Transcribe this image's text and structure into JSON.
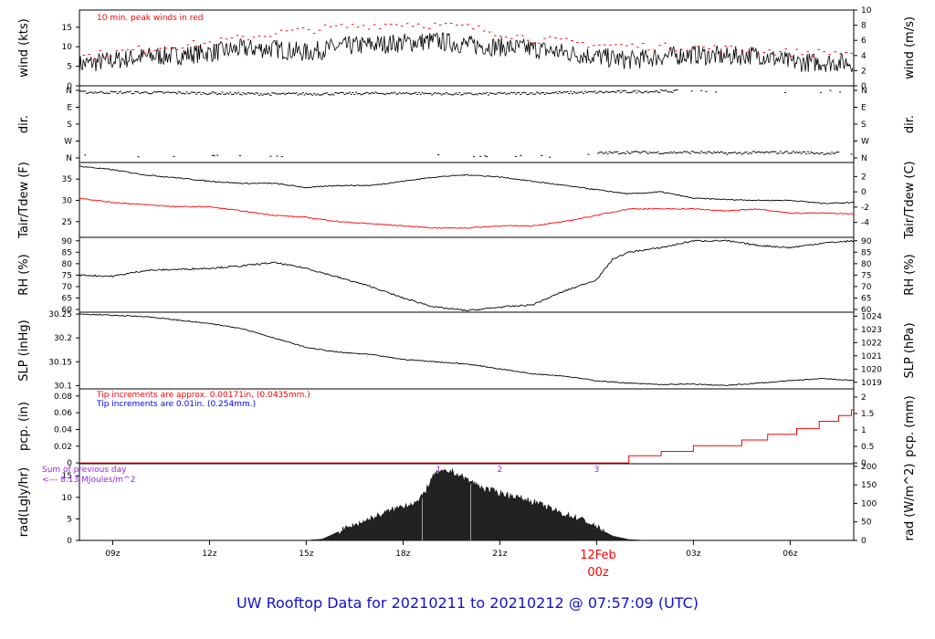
{
  "title": "UW Rooftop Data for 20210211  to  20210212 @ 07:57:09  (UTC)",
  "colors": {
    "text": "#000000",
    "red": "#ff0000",
    "blue": "#0000ff",
    "purple": "#a020f0",
    "title": "#1010d0"
  },
  "x_axis": {
    "ticks": [
      "09z",
      "12z",
      "15z",
      "18z",
      "21z",
      "",
      "03z",
      "06z"
    ],
    "day_label": "12Feb",
    "day_sublabel": "00z",
    "range_hours": [
      7.97,
      31.97
    ]
  },
  "chart_data": [
    {
      "type": "line",
      "panel": "wind",
      "ylabel_left": "wind (kts)",
      "ylabel_right": "wind (m/s)",
      "note": "10 min. peak winds in red",
      "ylim": [
        0,
        19.4
      ],
      "left_ticks": [
        0,
        5,
        10,
        15
      ],
      "right_ticks": [
        0,
        2,
        4,
        6,
        8,
        10
      ],
      "series": [
        {
          "values": [
            [
              8,
              5.5
            ],
            [
              9,
              6.5
            ],
            [
              10,
              7.5
            ],
            [
              11,
              7.8
            ],
            [
              12,
              8.5
            ],
            [
              13,
              9.5
            ],
            [
              14,
              9.5
            ],
            [
              15,
              8.5
            ],
            [
              16,
              10
            ],
            [
              17,
              10.5
            ],
            [
              18,
              11
            ],
            [
              19,
              11.5
            ],
            [
              20,
              10.5
            ],
            [
              21,
              10
            ],
            [
              22,
              9.5
            ],
            [
              23,
              8.5
            ],
            [
              24,
              7.5
            ],
            [
              25,
              6.5
            ],
            [
              26,
              7.5
            ],
            [
              27,
              8
            ],
            [
              28,
              7.5
            ],
            [
              29,
              8
            ],
            [
              30,
              6
            ],
            [
              31,
              6
            ],
            [
              32,
              6
            ]
          ]
        },
        {
          "values": [
            [
              8,
              7.5
            ],
            [
              10,
              9.5
            ],
            [
              12,
              11
            ],
            [
              14,
              13.5
            ],
            [
              16,
              15
            ],
            [
              18,
              16
            ],
            [
              20,
              15
            ],
            [
              22,
              12
            ],
            [
              24,
              10.5
            ],
            [
              26,
              10
            ],
            [
              28,
              9.5
            ],
            [
              30,
              8.5
            ],
            [
              32,
              8.5
            ]
          ]
        }
      ]
    },
    {
      "type": "scatter",
      "panel": "dir",
      "ylabel_left": "dir.",
      "ylabel_right": "dir.",
      "ylim": [
        0,
        360
      ],
      "tick_labels": [
        "N",
        "W",
        "S",
        "E",
        "N"
      ],
      "series": [
        {
          "values": [
            [
              8,
              350
            ],
            [
              10,
              348
            ],
            [
              12,
              345
            ],
            [
              14,
              340
            ],
            [
              16,
              342
            ],
            [
              18,
              345
            ],
            [
              20,
              340
            ],
            [
              22,
              345
            ],
            [
              24,
              350
            ],
            [
              26,
              355
            ]
          ]
        },
        {
          "values": [
            [
              8,
              15
            ],
            [
              9,
              12
            ],
            [
              12,
              10
            ],
            [
              16,
              8
            ],
            [
              19,
              10
            ],
            [
              21,
              5
            ],
            [
              23,
              10
            ],
            [
              24,
              25
            ],
            [
              25,
              30
            ],
            [
              26,
              28
            ],
            [
              27,
              30
            ],
            [
              28,
              25
            ],
            [
              29,
              28
            ],
            [
              30,
              30
            ],
            [
              31,
              25
            ]
          ]
        }
      ]
    },
    {
      "type": "line",
      "panel": "temp",
      "ylabel_left": "Tair/Tdew (F)",
      "ylabel_right": "Tair/Tdew (C)",
      "ylim": [
        21.3,
        38.9
      ],
      "left_ticks": [
        25,
        30,
        35
      ],
      "right_ticks": [
        -4,
        -2,
        0,
        2
      ],
      "series": [
        {
          "values": [
            [
              8,
              38
            ],
            [
              9,
              37.2
            ],
            [
              10,
              36
            ],
            [
              11,
              35.3
            ],
            [
              12,
              34.5
            ],
            [
              13,
              34
            ],
            [
              14,
              34
            ],
            [
              15,
              33
            ],
            [
              16,
              33.5
            ],
            [
              17,
              33.5
            ],
            [
              18,
              34.5
            ],
            [
              19,
              35.5
            ],
            [
              20,
              36
            ],
            [
              21,
              35.5
            ],
            [
              22,
              34.5
            ],
            [
              23,
              33.5
            ],
            [
              24,
              32.5
            ],
            [
              25,
              31.5
            ],
            [
              26,
              32
            ],
            [
              27,
              30.5
            ],
            [
              28,
              30.2
            ],
            [
              29,
              30
            ],
            [
              30,
              30
            ],
            [
              31,
              29.3
            ],
            [
              32,
              29.5
            ]
          ]
        },
        {
          "values": [
            [
              8,
              30.5
            ],
            [
              9,
              29.5
            ],
            [
              10,
              29
            ],
            [
              11,
              28.5
            ],
            [
              12,
              28.5
            ],
            [
              13,
              27.5
            ],
            [
              14,
              26.5
            ],
            [
              15,
              26
            ],
            [
              16,
              25
            ],
            [
              17,
              24.5
            ],
            [
              18,
              24
            ],
            [
              19,
              23.5
            ],
            [
              20,
              23.5
            ],
            [
              21,
              24
            ],
            [
              22,
              24
            ],
            [
              23,
              25
            ],
            [
              24,
              26.5
            ],
            [
              25,
              28
            ],
            [
              26,
              28
            ],
            [
              27,
              28
            ],
            [
              28,
              27.5
            ],
            [
              29,
              28
            ],
            [
              30,
              27
            ],
            [
              31,
              27
            ],
            [
              32,
              26.8
            ]
          ]
        }
      ]
    },
    {
      "type": "line",
      "panel": "rh",
      "ylabel_left": "RH (%)",
      "ylabel_right": "RH (%)",
      "ylim": [
        58.8,
        91.5
      ],
      "left_ticks": [
        60,
        65,
        70,
        75,
        80,
        85,
        90
      ],
      "right_ticks": [
        60,
        65,
        70,
        75,
        80,
        85,
        90
      ],
      "series": [
        {
          "values": [
            [
              8,
              75
            ],
            [
              9,
              74.5
            ],
            [
              10,
              77
            ],
            [
              11,
              77.5
            ],
            [
              12,
              78
            ],
            [
              13,
              79
            ],
            [
              14,
              80.5
            ],
            [
              15,
              78
            ],
            [
              16,
              74
            ],
            [
              17,
              70
            ],
            [
              18,
              65
            ],
            [
              19,
              61
            ],
            [
              20,
              59.5
            ],
            [
              21,
              61
            ],
            [
              22,
              62
            ],
            [
              23,
              68
            ],
            [
              24,
              73
            ],
            [
              24.5,
              82
            ],
            [
              25,
              85
            ],
            [
              26,
              87
            ],
            [
              27,
              90
            ],
            [
              28,
              90
            ],
            [
              29,
              88
            ],
            [
              30,
              87
            ],
            [
              31,
              89
            ],
            [
              32,
              90
            ]
          ]
        }
      ]
    },
    {
      "type": "line",
      "panel": "slp",
      "ylabel_left": "SLP (inHg)",
      "ylabel_right": "SLP (hPa)",
      "ylim": [
        30.093,
        30.254
      ],
      "left_ticks": [
        30.1,
        30.15,
        30.2,
        30.25
      ],
      "right_ticks": [
        1019,
        1020,
        1021,
        1022,
        1023,
        1024
      ],
      "series": [
        {
          "values": [
            [
              8,
              30.25
            ],
            [
              10,
              30.245
            ],
            [
              12,
              30.23
            ],
            [
              13,
              30.22
            ],
            [
              14,
              30.2
            ],
            [
              15,
              30.18
            ],
            [
              16,
              30.17
            ],
            [
              17,
              30.165
            ],
            [
              18,
              30.155
            ],
            [
              19,
              30.15
            ],
            [
              20,
              30.145
            ],
            [
              21,
              30.135
            ],
            [
              22,
              30.125
            ],
            [
              23,
              30.12
            ],
            [
              24,
              30.11
            ],
            [
              25,
              30.105
            ],
            [
              26,
              30.102
            ],
            [
              27,
              30.103
            ],
            [
              28,
              30.1
            ],
            [
              29,
              30.105
            ],
            [
              30,
              30.11
            ],
            [
              31,
              30.115
            ],
            [
              32,
              30.11
            ]
          ]
        }
      ]
    },
    {
      "type": "line",
      "panel": "pcp",
      "ylabel_left": "pcp. (in)",
      "ylabel_right": "pcp. (mm)",
      "note_red": "Tip increments are approx. 0.00171in. (0.0435mm.)",
      "note_blue": "Tip increments are 0.01in. (0.254mm.)",
      "ylim": [
        -0.001,
        0.0885
      ],
      "left_ticks": [
        0,
        0.02,
        0.04,
        0.06,
        0.08
      ],
      "right_ticks": [
        0,
        0.5,
        1,
        1.5,
        2
      ],
      "series": [
        {
          "values": [
            [
              8,
              0
            ],
            [
              25,
              0
            ],
            [
              25,
              0.0086
            ],
            [
              26,
              0.0086
            ],
            [
              26,
              0.0137
            ],
            [
              27,
              0.0137
            ],
            [
              27,
              0.0206
            ],
            [
              28.5,
              0.0206
            ],
            [
              28.5,
              0.0274
            ],
            [
              29.3,
              0.0274
            ],
            [
              29.3,
              0.0343
            ],
            [
              30.2,
              0.0343
            ],
            [
              30.2,
              0.0411
            ],
            [
              30.9,
              0.0411
            ],
            [
              30.9,
              0.0497
            ],
            [
              31.5,
              0.0497
            ],
            [
              31.5,
              0.0566
            ],
            [
              31.9,
              0.0566
            ],
            [
              31.9,
              0.0634
            ],
            [
              32,
              0.0634
            ]
          ]
        }
      ]
    },
    {
      "type": "area",
      "panel": "rad",
      "ylabel_left": "rad(Lgly/hr)",
      "ylabel_right": "rad (W/m^2)",
      "note_line1": "Sum of previous day",
      "note_line2": "<--- 8.13 MJoules/m^2",
      "markers": [
        "1",
        "2",
        "3"
      ],
      "ylim": [
        0,
        17.8
      ],
      "left_ticks": [
        0,
        5,
        10,
        15
      ],
      "right_ticks": [
        0,
        50,
        100,
        150,
        200
      ],
      "series": [
        {
          "values": [
            [
              15,
              0
            ],
            [
              15.5,
              0.3
            ],
            [
              16,
              2
            ],
            [
              17,
              5
            ],
            [
              18,
              8
            ],
            [
              18.5,
              9
            ],
            [
              19,
              15.5
            ],
            [
              19.5,
              16
            ],
            [
              20,
              14
            ],
            [
              20.5,
              12
            ],
            [
              21,
              11
            ],
            [
              22,
              9
            ],
            [
              23,
              6
            ],
            [
              23.5,
              5
            ],
            [
              24,
              3
            ],
            [
              24.5,
              1
            ],
            [
              25,
              0.2
            ],
            [
              25.5,
              0
            ]
          ]
        }
      ]
    }
  ]
}
